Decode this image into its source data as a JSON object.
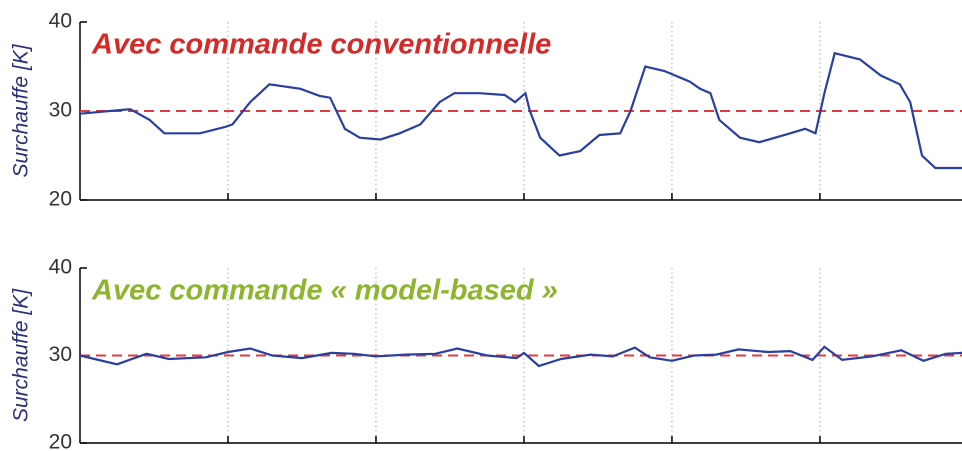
{
  "chart_data": [
    {
      "type": "line",
      "title": "Avec commande conventionnelle",
      "title_color": "#d42a2a",
      "ylabel": "Surchauffe [K]",
      "x": [
        0,
        0.34,
        0.47,
        0.57,
        0.81,
        0.98,
        1.03,
        1.15,
        1.28,
        1.49,
        1.62,
        1.69,
        1.79,
        1.89,
        2.03,
        2.16,
        2.3,
        2.43,
        2.53,
        2.7,
        2.87,
        2.94,
        3.01,
        3.04,
        3.11,
        3.24,
        3.38,
        3.51,
        3.65,
        3.72,
        3.82,
        3.95,
        4.12,
        4.19,
        4.26,
        4.32,
        4.46,
        4.59,
        4.8,
        4.9,
        4.97,
        5.03,
        5.1,
        5.27,
        5.41,
        5.54,
        5.61,
        5.69,
        5.78,
        5.96
      ],
      "series": [
        {
          "color": "#2a3fa0",
          "values": [
            29.7,
            30.2,
            29,
            27.5,
            27.5,
            28.2,
            28.5,
            31,
            33,
            32.5,
            31.7,
            31.5,
            28,
            27,
            26.8,
            27.5,
            28.5,
            31,
            32,
            32,
            31.8,
            31,
            32,
            30,
            27,
            25,
            25.5,
            27.3,
            27.5,
            30,
            35,
            34.5,
            33.3,
            32.5,
            32,
            29,
            27,
            26.5,
            27.5,
            28,
            27.5,
            32,
            36.5,
            35.8,
            34,
            33,
            31,
            25,
            23.6,
            23.6
          ]
        }
      ],
      "reference_line": {
        "value": 30,
        "color": "#e8383d"
      },
      "xlim": [
        0,
        5.96
      ],
      "xticks": [
        1,
        2,
        3,
        4,
        5
      ],
      "ylim": [
        20,
        40
      ],
      "yticks": [
        20,
        30,
        40
      ],
      "grid": true
    },
    {
      "type": "line",
      "title": "Avec commande « model-based »",
      "title_color": "#8db52e",
      "ylabel": "Surchauffe [K]",
      "x": [
        0,
        0.25,
        0.45,
        0.6,
        0.85,
        1.0,
        1.15,
        1.3,
        1.5,
        1.7,
        1.85,
        2.0,
        2.2,
        2.4,
        2.55,
        2.75,
        2.95,
        3.0,
        3.1,
        3.25,
        3.45,
        3.6,
        3.75,
        3.85,
        4.0,
        4.15,
        4.3,
        4.45,
        4.65,
        4.8,
        4.95,
        5.03,
        5.15,
        5.35,
        5.55,
        5.7,
        5.85,
        5.96
      ],
      "series": [
        {
          "color": "#2a3fa0",
          "values": [
            30,
            29,
            30.2,
            29.6,
            29.8,
            30.4,
            30.8,
            30,
            29.7,
            30.3,
            30.2,
            29.9,
            30.1,
            30.2,
            30.8,
            30,
            29.7,
            30.3,
            28.8,
            29.6,
            30.1,
            29.9,
            30.9,
            29.8,
            29.4,
            30,
            30.1,
            30.7,
            30.4,
            30.5,
            29.5,
            31,
            29.5,
            29.9,
            30.6,
            29.4,
            30.2,
            30.3
          ]
        }
      ],
      "reference_line": {
        "value": 30,
        "color": "#e8383d"
      },
      "xlim": [
        0,
        5.96
      ],
      "xticks": [
        1,
        2,
        3,
        4,
        5
      ],
      "ylim": [
        20,
        40
      ],
      "yticks": [
        20,
        30,
        40
      ],
      "grid": true
    }
  ]
}
